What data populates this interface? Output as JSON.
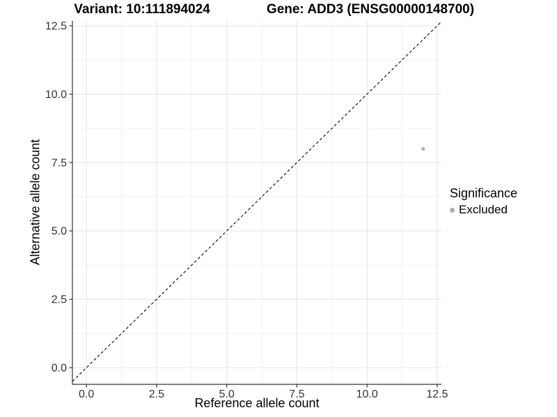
{
  "figure": {
    "title_variant": "Variant: 10:111894024",
    "title_gene": "Gene: ADD3 (ENSG00000148700)",
    "x_axis_label": "Reference allele count",
    "y_axis_label": "Alternative allele count"
  },
  "legend": {
    "title": "Significance",
    "items": [
      {
        "label": "Excluded",
        "color": "#adadad"
      }
    ]
  },
  "chart_data": {
    "type": "scatter",
    "title": "Variant: 10:111894024 | Gene: ADD3 (ENSG00000148700)",
    "xlabel": "Reference allele count",
    "ylabel": "Alternative allele count",
    "points": [
      {
        "x": 12,
        "y": 8,
        "significance": "Excluded"
      }
    ],
    "series": [
      {
        "name": "Excluded",
        "color": "#adadad",
        "points": [
          {
            "x": 12,
            "y": 8
          }
        ]
      }
    ],
    "abline": {
      "slope": 1,
      "intercept": 0,
      "linetype": "dashed",
      "color": "#000000"
    },
    "x_tick_values": [
      0,
      2.5,
      5,
      7.5,
      10,
      12.5
    ],
    "x_tick_labels": [
      "0.0",
      "2.5",
      "5.0",
      "7.5",
      "10.0",
      "12.5"
    ],
    "y_tick_values": [
      0,
      2.5,
      5,
      7.5,
      10,
      12.5
    ],
    "y_tick_labels": [
      "0.0",
      "2.5",
      "5.0",
      "7.5",
      "10.0",
      "12.5"
    ],
    "x_minor_ticks": [
      1.25,
      3.75,
      6.25,
      8.75,
      11.25
    ],
    "y_minor_ticks": [
      1.25,
      3.75,
      6.25,
      8.75,
      11.25
    ],
    "x_range": [
      -0.5,
      12.65
    ],
    "y_range": [
      -0.61,
      12.68
    ],
    "grid": true,
    "legend_position": "right",
    "colors": {
      "background": "#ffffff",
      "grid_major": "#e4e4e4",
      "grid_minor": "#f2f2f2",
      "axis_line": "#333333",
      "tick_label": "#333333",
      "point": "#adadad",
      "reference_line": "#000000"
    }
  }
}
